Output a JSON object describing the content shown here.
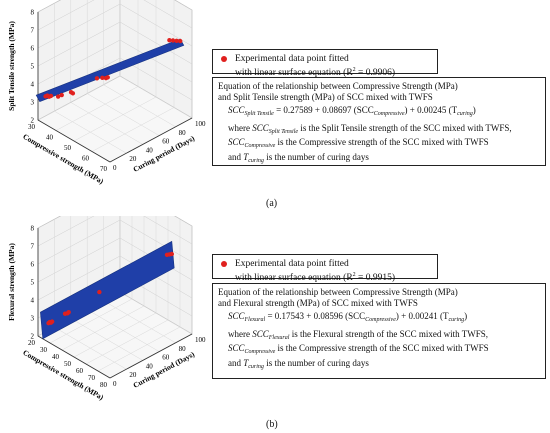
{
  "chart_data": [
    {
      "type": "scatter3d",
      "panel_label": "(a)",
      "xlabel": "Compressive strength (MPa)",
      "ylabel": "Curing period (Days)",
      "zlabel": "Split Tensile strength (MPa)",
      "x_ticks": [
        "30",
        "40",
        "50",
        "60",
        "70"
      ],
      "y_ticks": [
        "0",
        "20",
        "40",
        "60",
        "80",
        "100"
      ],
      "z_ticks": [
        "2",
        "3",
        "4",
        "5",
        "6",
        "7",
        "8"
      ],
      "xlim": [
        30,
        70
      ],
      "ylim": [
        0,
        100
      ],
      "zlim": [
        2,
        8
      ],
      "grid": true,
      "surface_color": "#1f3fa8",
      "point_color": "#e0201e",
      "points": [
        {
          "x": 31,
          "y": 7,
          "z": 3.2
        },
        {
          "x": 32,
          "y": 7,
          "z": 3.3
        },
        {
          "x": 33,
          "y": 7,
          "z": 3.3
        },
        {
          "x": 34,
          "y": 7,
          "z": 3.4
        },
        {
          "x": 38,
          "y": 7,
          "z": 3.6
        },
        {
          "x": 40,
          "y": 7,
          "z": 3.8
        },
        {
          "x": 42,
          "y": 14,
          "z": 3.9
        },
        {
          "x": 43,
          "y": 14,
          "z": 3.9
        },
        {
          "x": 50,
          "y": 28,
          "z": 4.8
        },
        {
          "x": 53,
          "y": 28,
          "z": 5.0
        },
        {
          "x": 55,
          "y": 28,
          "z": 5.1
        },
        {
          "x": 56,
          "y": 28,
          "z": 5.2
        },
        {
          "x": 62,
          "y": 90,
          "z": 6.1
        },
        {
          "x": 64,
          "y": 90,
          "z": 6.2
        },
        {
          "x": 66,
          "y": 90,
          "z": 6.3
        },
        {
          "x": 68,
          "y": 90,
          "z": 6.4
        }
      ],
      "legend": {
        "label_line1": "Experimental data point fitted",
        "label_line2": "with linear surface equation (R",
        "r2_exp": "2",
        "r2_value": " = 0.9906)"
      },
      "equation_box": {
        "heading_line1": "Equation of the relationship between Compressive Strength (MPa)",
        "heading_line2": "and Split Tensile strength (MPa) of SCC mixed with TWFS",
        "lhs_sub": "Split Tensile",
        "equation": " = 0.27589 + 0.08697 (SCC",
        "mid_sub": "Compressive",
        "equation_tail": ") + 0.00245 (T",
        "tail_sub": "curing",
        "line1_prefix": "where ",
        "line1_sub": "Split Tensile",
        "line1_text": " is the Split Tensile strength of the SCC mixed with TWFS,",
        "line2_sub": "Compressive",
        "line2_text": " is the Compressive strength of the SCC mixed with TWFS",
        "line3_prefix": "and ",
        "line3_sub": "curing",
        "line3_text": " is the number of curing days"
      }
    },
    {
      "type": "scatter3d",
      "panel_label": "(b)",
      "xlabel": "Compressive strength (MPa)",
      "ylabel": "Curing period (Days)",
      "zlabel": "Flexural strength (MPa)",
      "x_ticks": [
        "20",
        "30",
        "40",
        "50",
        "60",
        "70",
        "80"
      ],
      "y_ticks": [
        "0",
        "20",
        "40",
        "60",
        "80",
        "100"
      ],
      "z_ticks": [
        "2",
        "3",
        "4",
        "5",
        "6",
        "7",
        "8"
      ],
      "xlim": [
        20,
        80
      ],
      "ylim": [
        0,
        100
      ],
      "zlim": [
        2,
        8
      ],
      "grid": true,
      "surface_color": "#1f3fa8",
      "point_color": "#e0201e",
      "points": [
        {
          "x": 24,
          "y": 7,
          "z": 2.7
        },
        {
          "x": 25,
          "y": 7,
          "z": 2.8
        },
        {
          "x": 26,
          "y": 7,
          "z": 2.8
        },
        {
          "x": 27,
          "y": 7,
          "z": 2.9
        },
        {
          "x": 33,
          "y": 14,
          "z": 3.4
        },
        {
          "x": 35,
          "y": 14,
          "z": 3.5
        },
        {
          "x": 36,
          "y": 14,
          "z": 3.6
        },
        {
          "x": 52,
          "y": 28,
          "z": 5.0
        },
        {
          "x": 66,
          "y": 90,
          "z": 6.1
        },
        {
          "x": 68,
          "y": 90,
          "z": 6.2
        },
        {
          "x": 70,
          "y": 90,
          "z": 6.3
        }
      ],
      "legend": {
        "label_line1": "Experimental data point fitted",
        "label_line2": "with linear surface equation (R",
        "r2_exp": "2",
        "r2_value": " = 0.9915)"
      },
      "equation_box": {
        "heading_line1": "Equation of the relationship between Compressive Strength (MPa)",
        "heading_line2": "and Flexural strength (MPa) of SCC mixed with TWFS",
        "lhs_sub": "Flexural",
        "equation": " = 0.17543 + 0.08596 (SCC",
        "mid_sub": "Compressive",
        "equation_tail": ") + 0.00241 (T",
        "tail_sub": "curing",
        "line1_prefix": "where ",
        "line1_sub": "Flexural",
        "line1_text": " is the Flexural strength of the SCC mixed with TWFS,",
        "line2_sub": "Compressive",
        "line2_text": " is the Compressive strength of the SCC mixed with TWFS",
        "line3_prefix": "and ",
        "line3_sub": "curing",
        "line3_text": " is the number of curing days"
      }
    }
  ],
  "symbols": {
    "scc": "SCC",
    "t": "T"
  }
}
